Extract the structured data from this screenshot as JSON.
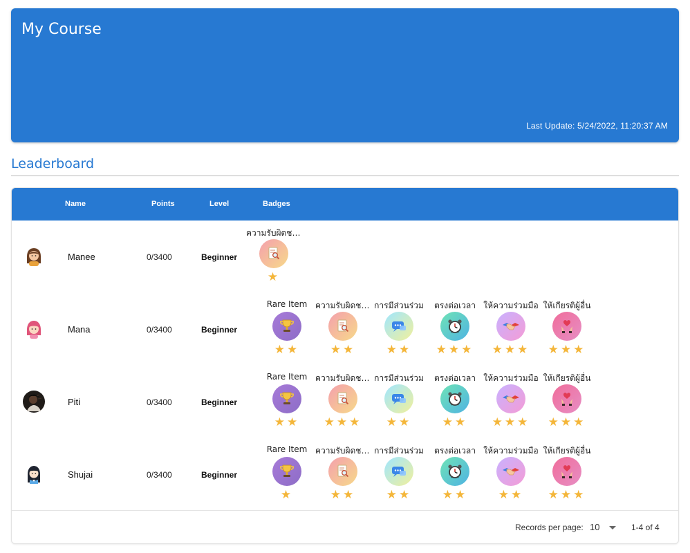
{
  "hero": {
    "title": "My Course",
    "last_update": "Last Update: 5/24/2022, 11:20:37 AM"
  },
  "leaderboard": {
    "title": "Leaderboard",
    "columns": [
      "Name",
      "Points",
      "Level",
      "Badges"
    ],
    "rows": [
      {
        "name": "Manee",
        "points": "0/3400",
        "level": "Beginner",
        "avatar": "girl-brown-hair-avatar",
        "badges": [
          {
            "label": "ความรับผิดชอบ",
            "icon": "document-search-icon",
            "stars": 1,
            "color": "resp"
          }
        ]
      },
      {
        "name": "Mana",
        "points": "0/3400",
        "level": "Beginner",
        "avatar": "girl-pink-hair-avatar",
        "badges": [
          {
            "label": "Rare Item",
            "icon": "trophy-icon",
            "stars": 2,
            "color": "rare"
          },
          {
            "label": "ความรับผิดชอบ",
            "icon": "document-search-icon",
            "stars": 2,
            "color": "resp"
          },
          {
            "label": "การมีส่วนร่วม",
            "icon": "chat-bubbles-icon",
            "stars": 2,
            "color": "part"
          },
          {
            "label": "ตรงต่อเวลา",
            "icon": "alarm-clock-icon",
            "stars": 3,
            "color": "time"
          },
          {
            "label": "ให้ความร่วมมือ",
            "icon": "handshake-icon",
            "stars": 3,
            "color": "coop"
          },
          {
            "label": "ให้เกียรติผู้อื่น",
            "icon": "hands-heart-icon",
            "stars": 3,
            "color": "hon"
          }
        ]
      },
      {
        "name": "Piti",
        "points": "0/3400",
        "level": "Beginner",
        "avatar": "dark-photo-avatar",
        "badges": [
          {
            "label": "Rare Item",
            "icon": "trophy-icon",
            "stars": 2,
            "color": "rare"
          },
          {
            "label": "ความรับผิดชอบ",
            "icon": "document-search-icon",
            "stars": 3,
            "color": "resp"
          },
          {
            "label": "การมีส่วนร่วม",
            "icon": "chat-bubbles-icon",
            "stars": 2,
            "color": "part"
          },
          {
            "label": "ตรงต่อเวลา",
            "icon": "alarm-clock-icon",
            "stars": 2,
            "color": "time"
          },
          {
            "label": "ให้ความร่วมมือ",
            "icon": "handshake-icon",
            "stars": 3,
            "color": "coop"
          },
          {
            "label": "ให้เกียรติผู้อื่น",
            "icon": "hands-heart-icon",
            "stars": 3,
            "color": "hon"
          }
        ]
      },
      {
        "name": "Shujai",
        "points": "0/3400",
        "level": "Beginner",
        "avatar": "girl-black-hair-avatar",
        "badges": [
          {
            "label": "Rare Item",
            "icon": "trophy-icon",
            "stars": 1,
            "color": "rare"
          },
          {
            "label": "ความรับผิดชอบ",
            "icon": "document-search-icon",
            "stars": 2,
            "color": "resp"
          },
          {
            "label": "การมีส่วนร่วม",
            "icon": "chat-bubbles-icon",
            "stars": 2,
            "color": "part"
          },
          {
            "label": "ตรงต่อเวลา",
            "icon": "alarm-clock-icon",
            "stars": 2,
            "color": "time"
          },
          {
            "label": "ให้ความร่วมมือ",
            "icon": "handshake-icon",
            "stars": 2,
            "color": "coop"
          },
          {
            "label": "ให้เกียรติผู้อื่น",
            "icon": "hands-heart-icon",
            "stars": 3,
            "color": "hon"
          }
        ]
      }
    ]
  },
  "footer": {
    "records_label": "Records per page:",
    "records_value": "10",
    "range": "1-4 of 4"
  },
  "colors": {
    "primary": "#2779d2",
    "star": "#f4b63a"
  }
}
